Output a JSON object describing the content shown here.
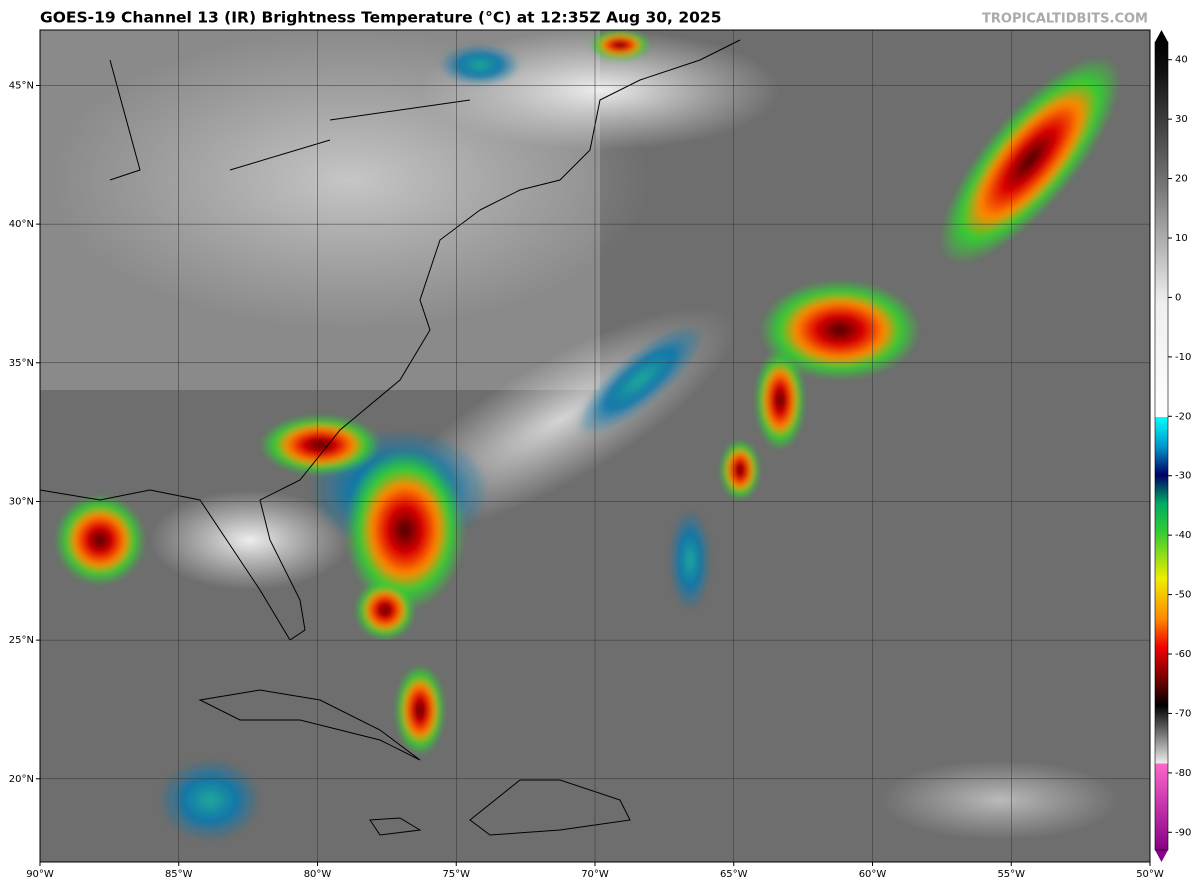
{
  "header": {
    "title": "GOES-19 Channel 13 (IR) Brightness Temperature (°C) at 12:35Z Aug 30, 2025",
    "credit": "TROPICALTIDBITS.COM"
  },
  "map": {
    "lonlim": [
      -90,
      -50
    ],
    "latlim": [
      17,
      47
    ],
    "lon_ticks": [
      {
        "value": -90,
        "label": "90°W"
      },
      {
        "value": -85,
        "label": "85°W"
      },
      {
        "value": -80,
        "label": "80°W"
      },
      {
        "value": -75,
        "label": "75°W"
      },
      {
        "value": -70,
        "label": "70°W"
      },
      {
        "value": -65,
        "label": "65°W"
      },
      {
        "value": -60,
        "label": "60°W"
      },
      {
        "value": -55,
        "label": "55°W"
      },
      {
        "value": -50,
        "label": "50°W"
      }
    ],
    "lat_ticks": [
      {
        "value": 20,
        "label": "20°N"
      },
      {
        "value": 25,
        "label": "25°N"
      },
      {
        "value": 30,
        "label": "30°N"
      },
      {
        "value": 35,
        "label": "35°N"
      },
      {
        "value": 40,
        "label": "40°N"
      },
      {
        "value": 45,
        "label": "45°N"
      }
    ]
  },
  "colorbar": {
    "lim": [
      -95,
      45
    ],
    "ticks": [
      40,
      30,
      20,
      10,
      0,
      -10,
      -20,
      -30,
      -40,
      -50,
      -60,
      -70,
      -80,
      -90
    ]
  }
}
